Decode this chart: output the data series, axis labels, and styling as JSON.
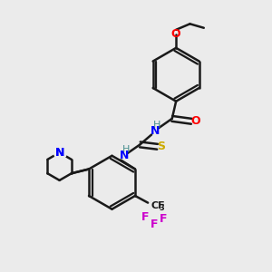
{
  "bg_color": "#ebebeb",
  "bond_color": "#1a1a1a",
  "atom_colors": {
    "O": "#ff0000",
    "N": "#0000ff",
    "S": "#ccaa00",
    "F": "#cc00cc",
    "C": "#1a1a1a",
    "H": "#4a9090"
  }
}
